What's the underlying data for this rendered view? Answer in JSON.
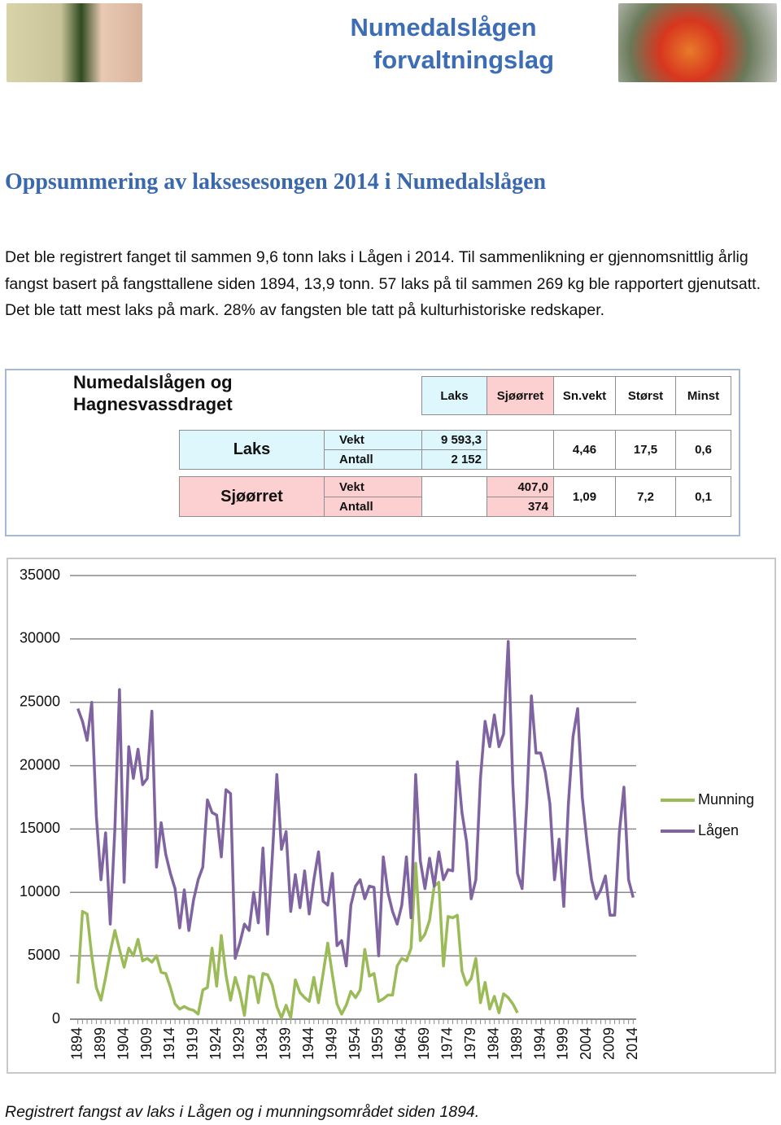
{
  "header": {
    "logo": [
      "Numedalslågen",
      "forvaltningslag"
    ]
  },
  "title": "Oppsummering av laksesesongen 2014 i Numedalslågen",
  "paragraph": "Det ble registrert fanget til sammen 9,6 tonn laks i Lågen i 2014. Til sammenlikning er gjennomsnittlig årlig fangst basert på fangsttallene siden 1894, 13,9 tonn.  57 laks på til sammen 269 kg ble rapportert gjenutsatt. Det ble tatt mest laks på mark. 28% av fangsten ble tatt på kulturhistoriske redskaper.",
  "table": {
    "title": "Numedalslågen og Hagnesvassdraget",
    "columns": [
      "Laks",
      "Sjøørret",
      "Sn.vekt",
      "Størst",
      "Minst"
    ],
    "rows": [
      {
        "species": "Laks",
        "measures": [
          "Vekt",
          "Antall"
        ],
        "values": [
          "9 593,3",
          "2 152"
        ],
        "sn_vekt": "4,46",
        "storst": "17,5",
        "minst": "0,6"
      },
      {
        "species": "Sjøørret",
        "measures": [
          "Vekt",
          "Antall"
        ],
        "values": [
          "407,0",
          "374"
        ],
        "sn_vekt": "1,09",
        "storst": "7,2",
        "minst": "0,1"
      }
    ]
  },
  "chart_data": {
    "type": "line",
    "x": [
      1894,
      1895,
      1896,
      1897,
      1898,
      1899,
      1900,
      1901,
      1902,
      1903,
      1904,
      1905,
      1906,
      1907,
      1908,
      1909,
      1910,
      1911,
      1912,
      1913,
      1914,
      1915,
      1916,
      1917,
      1918,
      1919,
      1920,
      1921,
      1922,
      1923,
      1924,
      1925,
      1926,
      1927,
      1928,
      1929,
      1930,
      1931,
      1932,
      1933,
      1934,
      1935,
      1936,
      1937,
      1938,
      1939,
      1940,
      1941,
      1942,
      1943,
      1944,
      1945,
      1946,
      1947,
      1948,
      1949,
      1950,
      1951,
      1952,
      1953,
      1954,
      1955,
      1956,
      1957,
      1958,
      1959,
      1960,
      1961,
      1962,
      1963,
      1964,
      1965,
      1966,
      1967,
      1968,
      1969,
      1970,
      1971,
      1972,
      1973,
      1974,
      1975,
      1976,
      1977,
      1978,
      1979,
      1980,
      1981,
      1982,
      1983,
      1984,
      1985,
      1986,
      1987,
      1988,
      1989,
      1990,
      1991,
      1992,
      1993,
      1994,
      1995,
      1996,
      1997,
      1998,
      1999,
      2000,
      2001,
      2002,
      2003,
      2004,
      2005,
      2006,
      2007,
      2008,
      2009,
      2010,
      2011,
      2012,
      2013,
      2014
    ],
    "series": [
      {
        "name": "Munning",
        "color": "#9bbb59",
        "values": [
          2800,
          8500,
          8300,
          5000,
          2500,
          1500,
          3300,
          5300,
          7000,
          5500,
          4100,
          5600,
          5000,
          6300,
          4600,
          4800,
          4500,
          5000,
          3700,
          3600,
          2500,
          1200,
          800,
          1000,
          800,
          700,
          400,
          2300,
          2500,
          5600,
          2600,
          6600,
          3500,
          1500,
          3300,
          2100,
          300,
          3400,
          3300,
          1300,
          3600,
          3500,
          2700,
          1000,
          100,
          1100,
          100,
          3100,
          2100,
          1700,
          1400,
          3300,
          1300,
          3600,
          6000,
          3500,
          1200,
          400,
          1100,
          2200,
          1700,
          2300,
          5500,
          3400,
          3600,
          1400,
          1600,
          1900,
          1900,
          4200,
          4800,
          4600,
          5600,
          12300,
          6200,
          6700,
          7800,
          10500,
          10800,
          4200,
          8100,
          8000,
          8200,
          3800,
          2700,
          3200,
          4800,
          1300,
          2900,
          800,
          1800,
          500,
          2000,
          1700,
          1200,
          500,
          null,
          null,
          null,
          null,
          null,
          null,
          null,
          null,
          null,
          null,
          null,
          null,
          null,
          null,
          null,
          null,
          null,
          null,
          null,
          null,
          null,
          null,
          null,
          null,
          null
        ]
      },
      {
        "name": "Lågen",
        "color": "#8064a2",
        "values": [
          24500,
          23500,
          22000,
          25000,
          16000,
          11000,
          14700,
          7500,
          15000,
          26000,
          10800,
          21500,
          19000,
          21300,
          18500,
          19000,
          24300,
          12000,
          15500,
          13000,
          11500,
          10300,
          7200,
          10200,
          7000,
          9400,
          11000,
          12000,
          17300,
          16300,
          16100,
          12800,
          18100,
          17800,
          4800,
          6000,
          7500,
          7000,
          10000,
          7600,
          13500,
          6700,
          12700,
          19300,
          13400,
          14800,
          8500,
          11400,
          8800,
          11700,
          8300,
          11000,
          13200,
          9300,
          9000,
          11500,
          5800,
          6200,
          4200,
          9000,
          10500,
          11000,
          9500,
          10500,
          10400,
          5000,
          12800,
          10000,
          8500,
          7500,
          9000,
          12800,
          8000,
          19300,
          12500,
          10300,
          12700,
          10500,
          13200,
          11000,
          11800,
          11700,
          20300,
          16300,
          14000,
          9500,
          11000,
          19000,
          23500,
          21500,
          24000,
          21500,
          22500,
          29800,
          18500,
          11500,
          10300,
          17000,
          25500,
          21000,
          21000,
          19500,
          17000,
          11000,
          14200,
          8900,
          17000,
          22300,
          24500,
          17500,
          14000,
          11000,
          9500,
          10200,
          11300,
          8200,
          8200,
          14700,
          18300,
          11000,
          9600
        ]
      }
    ],
    "xlim": [
      1893,
      2015
    ],
    "xticks": [
      1894,
      1899,
      1904,
      1909,
      1914,
      1919,
      1924,
      1929,
      1934,
      1939,
      1944,
      1949,
      1954,
      1959,
      1964,
      1969,
      1974,
      1979,
      1984,
      1989,
      1994,
      1999,
      2004,
      2009,
      2014
    ],
    "ylim": [
      0,
      35000
    ],
    "yticks": [
      0,
      5000,
      10000,
      15000,
      20000,
      25000,
      30000,
      35000
    ],
    "grid": true,
    "legend": "right"
  },
  "caption": "Registrert fangst av laks i Lågen og i munningsområdet siden 1894."
}
